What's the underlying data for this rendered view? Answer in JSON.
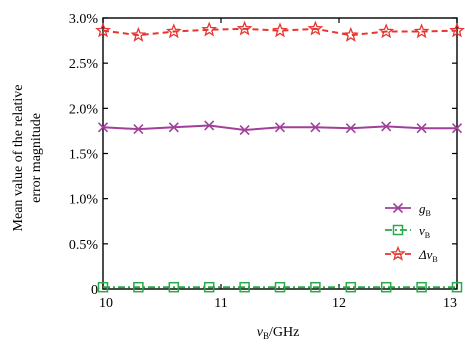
{
  "chart_data": {
    "type": "line",
    "xlabel": "v",
    "xlabel_sub": "B",
    "xlabel_unit": "/GHz",
    "ylabel_line1": "Mean value of the relative",
    "ylabel_line2": "error magnitude",
    "xlim": [
      10,
      13
    ],
    "ylim": [
      0,
      3
    ],
    "x_ticks": [
      10,
      11,
      12,
      13
    ],
    "x_tick_labels": [
      "10",
      "11",
      "12",
      "13"
    ],
    "y_ticks": [
      0,
      0.5,
      1.0,
      1.5,
      2.0,
      2.5,
      3.0
    ],
    "y_tick_labels": [
      "0",
      "0.5%",
      "1.0%",
      "1.5%",
      "2.0%",
      "2.5%",
      "3.0%"
    ],
    "grid": false,
    "legend_position": "bottom-right",
    "x": [
      10.0,
      10.3,
      10.6,
      10.9,
      11.2,
      11.5,
      11.8,
      12.1,
      12.4,
      12.7,
      13.0
    ],
    "series": [
      {
        "name": "g",
        "name_sub": "B",
        "marker": "x",
        "dash": "solid",
        "color": "#a0409a",
        "values": [
          1.79,
          1.77,
          1.79,
          1.81,
          1.76,
          1.79,
          1.79,
          1.78,
          1.8,
          1.78,
          1.78
        ]
      },
      {
        "name": "v",
        "name_sub": "B",
        "marker": "square",
        "dash": "dashdot",
        "color": "#2aa84a",
        "values": [
          0.02,
          0.02,
          0.02,
          0.02,
          0.02,
          0.02,
          0.02,
          0.02,
          0.02,
          0.02,
          0.02
        ]
      },
      {
        "name": "Δv",
        "name_sub": "B",
        "marker": "star",
        "dash": "dashed",
        "color": "#e8352f",
        "values": [
          2.86,
          2.81,
          2.85,
          2.87,
          2.88,
          2.86,
          2.88,
          2.81,
          2.85,
          2.85,
          2.86
        ]
      }
    ]
  }
}
